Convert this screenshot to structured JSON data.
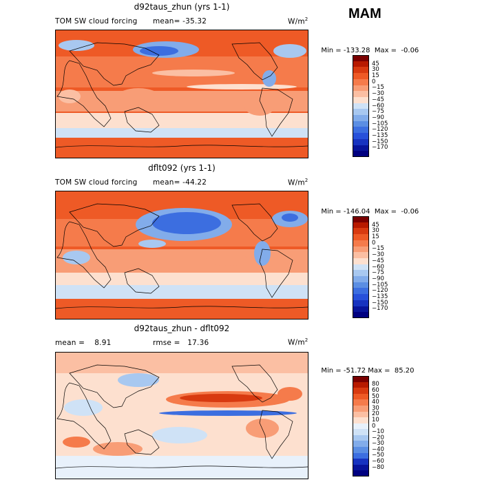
{
  "season": "MAM",
  "colors": {
    "coast": "#000000",
    "abs_scale": [
      "#7a0000",
      "#b71a00",
      "#d83a10",
      "#ee5a26",
      "#f57b4b",
      "#f89d76",
      "#fbbfa3",
      "#fde0cf",
      "#cfe2f6",
      "#a8c8f0",
      "#82acea",
      "#5b8ee3",
      "#3c6ee0",
      "#2750da",
      "#1733c0",
      "#08149a",
      "#000080"
    ],
    "diff_scale": [
      "#7a0000",
      "#b71a00",
      "#d83a10",
      "#ee5a26",
      "#f57b4b",
      "#f89d76",
      "#fbbfa3",
      "#fde0cf",
      "#e8f1fb",
      "#cfe2f6",
      "#a8c8f0",
      "#82acea",
      "#5b8ee3",
      "#3c6ee0",
      "#1733c0",
      "#08149a",
      "#000080"
    ]
  },
  "chart_data": [
    {
      "type": "heatmap",
      "title": "d92taus_zhun (yrs 1-1)",
      "left_label": "TOM SW cloud forcing",
      "mean_label": "mean=",
      "mean": "-35.32",
      "units_base": "W/m",
      "units_exp": "2",
      "min_label": "Min =",
      "min": "-133.28",
      "max_label": "Max =",
      "max": "-0.06",
      "colorbar_levels": [
        "45",
        "30",
        "15",
        "0",
        "−15",
        "−30",
        "−45",
        "−60",
        "−75",
        "−90",
        "−105",
        "−120",
        "−135",
        "−150",
        "−170"
      ]
    },
    {
      "type": "heatmap",
      "title": "dflt092 (yrs 1-1)",
      "left_label": "TOM SW cloud forcing",
      "mean_label": "mean=",
      "mean": "-44.22",
      "units_base": "W/m",
      "units_exp": "2",
      "min_label": "Min =",
      "min": "-146.04",
      "max_label": "Max =",
      "max": "-0.06",
      "colorbar_levels": [
        "45",
        "30",
        "15",
        "0",
        "−15",
        "−30",
        "−45",
        "−60",
        "−75",
        "−90",
        "−105",
        "−120",
        "−135",
        "−150",
        "−170"
      ]
    },
    {
      "type": "heatmap",
      "title": "d92taus_zhun - dflt092",
      "left_label": "mean =",
      "mean": "8.91",
      "rmse_label": "rmse =",
      "rmse": "17.36",
      "units_base": "W/m",
      "units_exp": "2",
      "min_label": "Min =",
      "min": "-51.72",
      "max_label": "Max =",
      "max": "85.20",
      "colorbar_levels": [
        "80",
        "60",
        "50",
        "40",
        "30",
        "20",
        "10",
        "0",
        "−10",
        "−20",
        "−30",
        "−40",
        "−50",
        "−60",
        "−80"
      ]
    }
  ]
}
